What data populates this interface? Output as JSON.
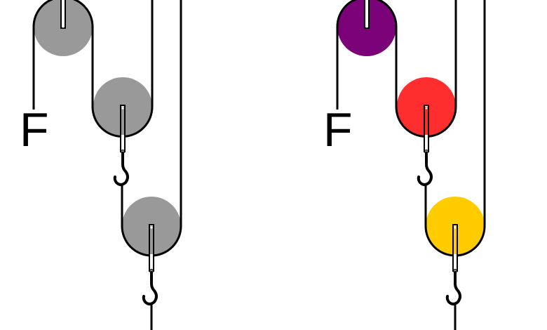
{
  "systems": [
    {
      "force_label": "F",
      "pulley_colors": {
        "top": "#999999",
        "middle": "#999999",
        "bottom": "#999999"
      }
    },
    {
      "force_label": "F",
      "pulley_colors": {
        "top": "#7a0177",
        "middle": "#ff2e2e",
        "bottom": "#ffcc00"
      }
    }
  ],
  "rope_color": "#000000"
}
